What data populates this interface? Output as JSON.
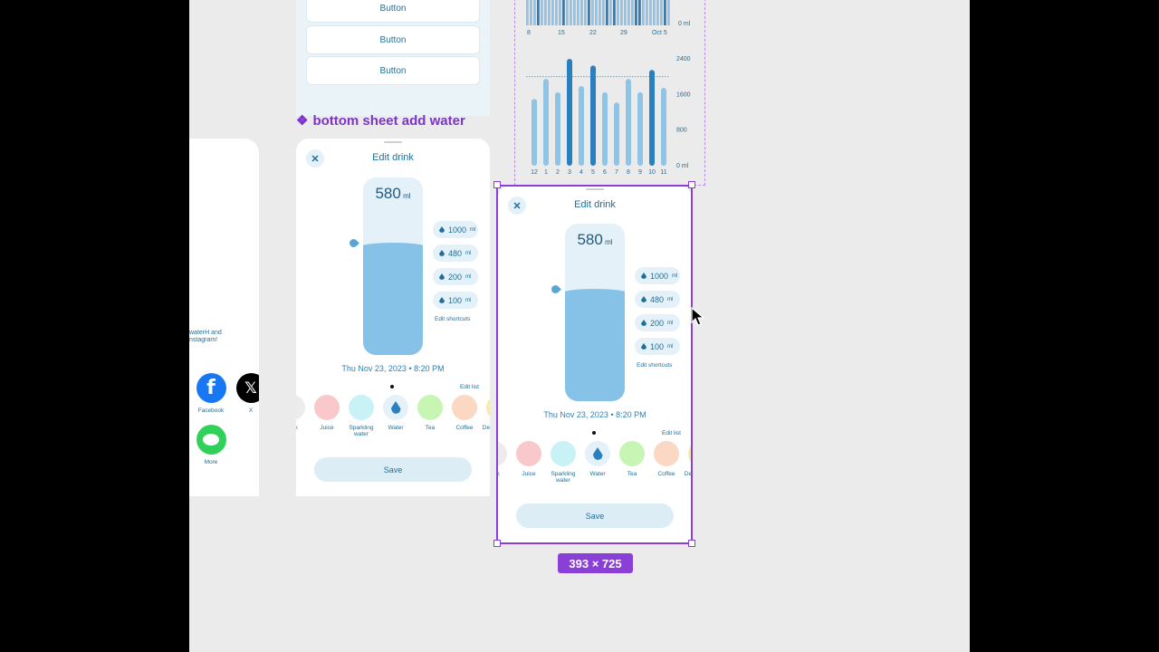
{
  "top_buttons": [
    "Button",
    "Button",
    "Button"
  ],
  "frame_label": {
    "glyph": "❖",
    "text": "bottom sheet add water"
  },
  "share": {
    "text_line1": "waterH and",
    "text_line2": "nstagram!",
    "apps": [
      {
        "label": "Facebook",
        "icon": "facebook-icon",
        "glyph": "f"
      },
      {
        "label": "X",
        "icon": "x-icon",
        "glyph": "𝕏"
      },
      {
        "label": "More",
        "icon": "messages-icon",
        "glyph": ""
      }
    ]
  },
  "chart_data": [
    {
      "type": "bar",
      "title": "",
      "x_ticks": [
        "8",
        "15",
        "22",
        "29",
        "Oct 5"
      ],
      "y_ticks": [
        "0 ml"
      ],
      "note": "monthly daily-intake strip (cropped at top)"
    },
    {
      "type": "bar",
      "categories": [
        "12",
        "1",
        "2",
        "3",
        "4",
        "5",
        "6",
        "7",
        "8",
        "9",
        "10",
        "11"
      ],
      "values": [
        1500,
        1950,
        1650,
        2400,
        1790,
        2250,
        1650,
        1420,
        1950,
        1650,
        2150,
        1750
      ],
      "highlighted": [
        false,
        false,
        false,
        true,
        false,
        true,
        false,
        false,
        false,
        false,
        true,
        false
      ],
      "y_ticks": [
        "0 ml",
        "800",
        "1600",
        "2400"
      ],
      "ylim": [
        0,
        2400
      ],
      "goal_line": 2000,
      "colors": {
        "bar": "#8fc4e6",
        "highlight": "#2a7fbf"
      }
    }
  ],
  "sheet": {
    "title": "Edit drink",
    "close": "✕",
    "amount": "580",
    "unit": "ml",
    "fill_fraction": 0.68,
    "shortcuts": [
      {
        "value": "1000",
        "unit": "ml"
      },
      {
        "value": "480",
        "unit": "ml"
      },
      {
        "value": "200",
        "unit": "ml"
      },
      {
        "value": "100",
        "unit": "ml"
      }
    ],
    "edit_shortcuts": "Edit shortcuts",
    "date": "Thu Nov 23, 2023 • 8:20 PM",
    "edit_list": "Edit list",
    "drinks": [
      {
        "name": "Milk",
        "color": "#ececec"
      },
      {
        "name": "Juice",
        "color": "#f9c8ca"
      },
      {
        "name": "Sparkling water",
        "color": "#c9f2f6"
      },
      {
        "name": "Water",
        "color": "#e4f1f8",
        "selected": true
      },
      {
        "name": "Tea",
        "color": "#c6f5b4"
      },
      {
        "name": "Coffee",
        "color": "#fad8c4"
      },
      {
        "name": "Decaf coffee",
        "color": "#fbe7b0"
      }
    ],
    "save": "Save"
  },
  "selection_size": "393 × 725"
}
